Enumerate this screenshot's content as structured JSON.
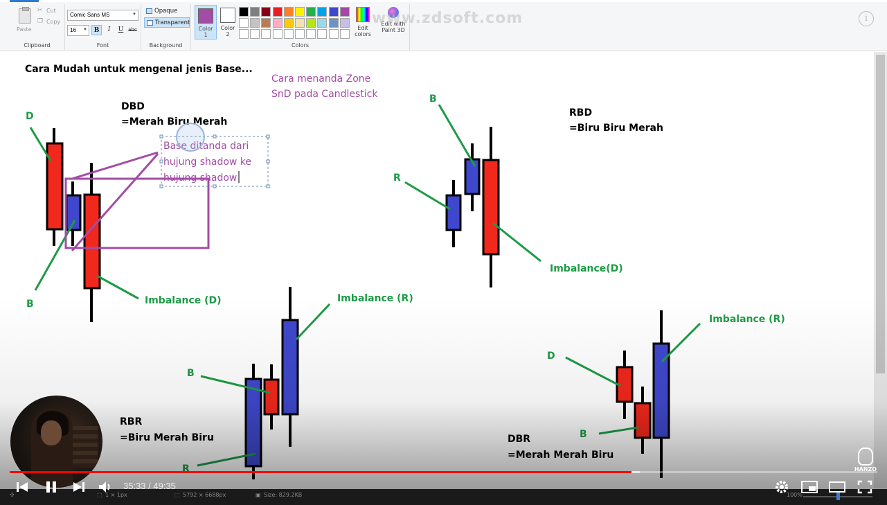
{
  "ribbon": {
    "clipboard": {
      "paste": "Paste",
      "cut": "Cut",
      "copy": "Copy",
      "label": "Clipboard"
    },
    "font": {
      "family": "Comic Sans MS",
      "size": "16",
      "bold": "B",
      "italic": "I",
      "underline": "U",
      "strike": "abc",
      "label": "Font"
    },
    "background": {
      "opaque": "Opaque",
      "transparent": "Transparent",
      "label": "Background"
    },
    "color1": {
      "label_a": "Color",
      "label_b": "1",
      "value": "#a24ca6"
    },
    "color2": {
      "label_a": "Color",
      "label_b": "2",
      "value": "#ffffff"
    },
    "colors_label": "Colors",
    "palette_row1": [
      "#000000",
      "#7f7f7f",
      "#880015",
      "#ed1c24",
      "#ff7f27",
      "#fff200",
      "#22b14c",
      "#00a2e8",
      "#3f48cc",
      "#a349a4"
    ],
    "palette_row2": [
      "#ffffff",
      "#c3c3c3",
      "#b97a57",
      "#ffaec9",
      "#ffc90e",
      "#efe4b0",
      "#b5e61d",
      "#99d9ea",
      "#7092be",
      "#c8bfe7"
    ],
    "edit_colors": {
      "a": "Edit",
      "b": "colors"
    },
    "paint3d": {
      "a": "Edit with",
      "b": "Paint 3D"
    },
    "watermark": "www.zdsoft.com",
    "info": "i"
  },
  "canvas": {
    "heading": "Cara Mudah untuk mengenal jenis Base...",
    "subtitle_line1": "Cara menanda Zone",
    "subtitle_line2": "SnD pada Candlestick",
    "dbd": {
      "title": "DBD",
      "desc": "=Merah Biru Merah",
      "label_d": "D",
      "label_b": "B",
      "imbalance": "Imbalance (D)"
    },
    "textbox": {
      "line1": "Base ditanda dari",
      "line2": "hujung shadow ke",
      "line3": "hujung shadow"
    },
    "rbd": {
      "title": "RBD",
      "desc": "=Biru Biru Merah",
      "label_b": "B",
      "label_r": "R",
      "imbalance": "Imbalance(D)"
    },
    "rbr": {
      "title": "RBR",
      "desc": "=Biru Merah Biru",
      "label_b": "B",
      "label_r": "R",
      "imbalance": "Imbalance (R)"
    },
    "dbr": {
      "title": "DBR",
      "desc": "=Merah Merah Biru",
      "label_d": "D",
      "label_b": "B",
      "imbalance": "Imbalance (R)"
    },
    "colors": {
      "red": "#f1281c",
      "blue": "#3f48cc",
      "green": "#1d9b46",
      "purple": "#a24ca6",
      "black": "#000000"
    }
  },
  "statusbar": {
    "selection": "1 × 1px",
    "dimensions": "5792 × 6688px",
    "size": "Size: 829.2KB",
    "zoom": "100%"
  },
  "video": {
    "time_current": "35:33",
    "time_total": "49:35",
    "time_display": "35:33 / 49:35",
    "progress": 0.717,
    "buffered": 0.726,
    "channel": "HANZO"
  }
}
